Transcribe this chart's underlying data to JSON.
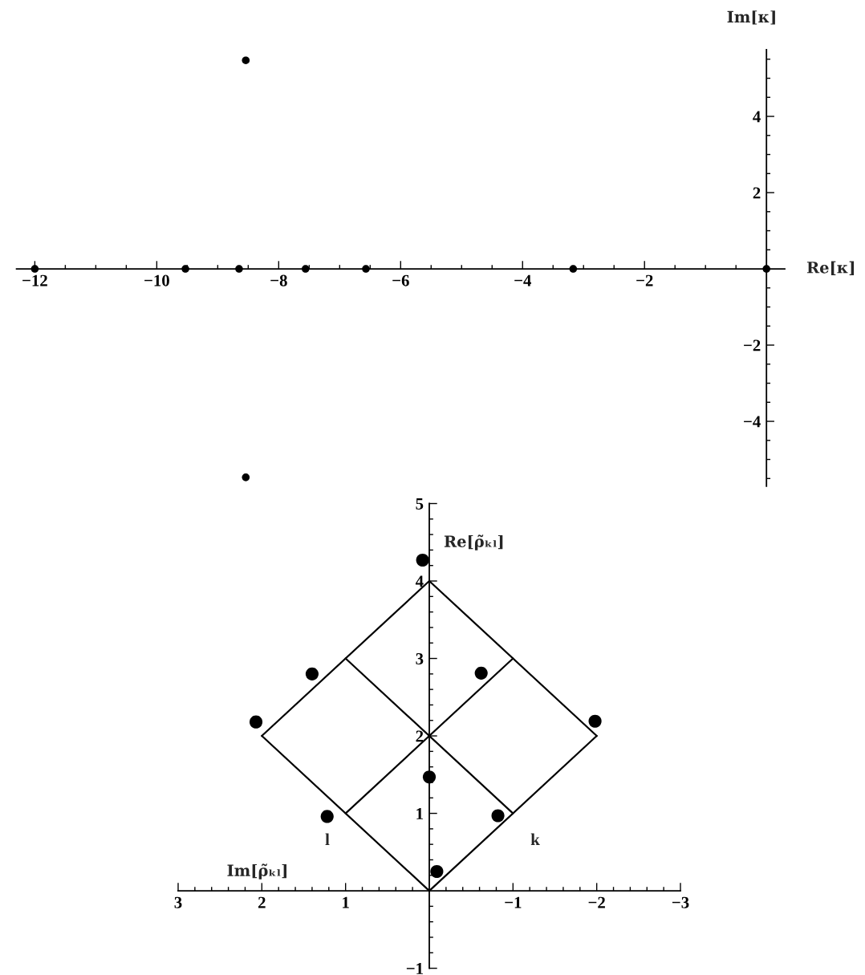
{
  "chart_data": [
    {
      "type": "scatter",
      "xlabel": "Re[κ]",
      "ylabel": "Im[κ]",
      "x": [
        -12.0,
        -9.53,
        -8.65,
        -7.56,
        -6.57,
        -3.17,
        0,
        -8.54,
        -8.54
      ],
      "values": [
        0,
        0,
        0,
        0,
        0,
        0,
        0,
        5.47,
        -5.47
      ],
      "color": "#000000",
      "marker": "circle",
      "xlim": [
        -12.3,
        0.3
      ],
      "ylim": [
        -5.7,
        5.75
      ],
      "xticks": [
        {
          "value": -12,
          "label": "−12"
        },
        {
          "value": -11.5,
          "label": null
        },
        {
          "value": -11,
          "label": null
        },
        {
          "value": -10.5,
          "label": null
        },
        {
          "value": -10,
          "label": "−10"
        },
        {
          "value": -9.5,
          "label": null
        },
        {
          "value": -9,
          "label": null
        },
        {
          "value": -8.5,
          "label": null
        },
        {
          "value": -8,
          "label": "−8"
        },
        {
          "value": -7.5,
          "label": null
        },
        {
          "value": -7,
          "label": null
        },
        {
          "value": -6.5,
          "label": null
        },
        {
          "value": -6,
          "label": "−6"
        },
        {
          "value": -5.5,
          "label": null
        },
        {
          "value": -5,
          "label": null
        },
        {
          "value": -4.5,
          "label": null
        },
        {
          "value": -4,
          "label": "−4"
        },
        {
          "value": -3.5,
          "label": null
        },
        {
          "value": -3,
          "label": null
        },
        {
          "value": -2.5,
          "label": null
        },
        {
          "value": -2,
          "label": "−2"
        },
        {
          "value": -1.5,
          "label": null
        },
        {
          "value": -1,
          "label": null
        },
        {
          "value": -0.5,
          "label": null
        }
      ],
      "yticks": [
        {
          "value": -5.5,
          "label": null
        },
        {
          "value": -5,
          "label": null
        },
        {
          "value": -4.5,
          "label": null
        },
        {
          "value": -4,
          "label": "−4"
        },
        {
          "value": -3.5,
          "label": null
        },
        {
          "value": -3,
          "label": null
        },
        {
          "value": -2.5,
          "label": null
        },
        {
          "value": -2,
          "label": "−2"
        },
        {
          "value": -1.5,
          "label": null
        },
        {
          "value": -1,
          "label": null
        },
        {
          "value": -0.5,
          "label": null
        },
        {
          "value": 0.5,
          "label": null
        },
        {
          "value": 1,
          "label": null
        },
        {
          "value": 1.5,
          "label": null
        },
        2,
        {
          "value": 2.5,
          "label": null
        },
        {
          "value": 3,
          "label": null
        },
        {
          "value": 3.5,
          "label": null
        },
        4,
        {
          "value": 4.5,
          "label": null
        },
        {
          "value": 5,
          "label": null
        },
        {
          "value": 5.5,
          "label": null
        }
      ]
    },
    {
      "type": "scatter",
      "xlabel": "Im[ρ̃ₖₗ]",
      "ylabel": "Re[ρ̃ₖₗ]",
      "xlim": [
        3,
        -3
      ],
      "ylim": [
        -1,
        5
      ],
      "series": [
        {
          "type": "line",
          "color": "#000000",
          "marker": "none",
          "line_style": "solid",
          "x": [
            2,
            0,
            -2
          ],
          "values": [
            2,
            0,
            2
          ]
        },
        {
          "type": "line",
          "color": "#000000",
          "marker": "none",
          "line_style": "solid",
          "x": [
            2,
            0,
            -2
          ],
          "values": [
            2,
            4,
            2
          ]
        },
        {
          "type": "line",
          "color": "#000000",
          "marker": "none",
          "line_style": "solid",
          "x": [
            1,
            -1
          ],
          "values": [
            1,
            3
          ]
        },
        {
          "type": "line",
          "color": "#000000",
          "marker": "none",
          "line_style": "solid",
          "x": [
            1,
            -1
          ],
          "values": [
            3,
            1
          ]
        },
        {
          "type": "scatter",
          "color": "#000000",
          "marker": "circle",
          "x": [
            0.08,
            1.4,
            -0.62,
            2.07,
            -1.98,
            0.0,
            1.22,
            -0.82,
            -0.09
          ],
          "values": [
            4.27,
            2.8,
            2.81,
            2.18,
            2.19,
            1.47,
            0.96,
            0.97,
            0.25
          ]
        }
      ],
      "annotations": [
        "l",
        "k"
      ],
      "xticks": [
        3,
        {
          "value": 2.8,
          "label": null
        },
        {
          "value": 2.6,
          "label": null
        },
        {
          "value": 2.4,
          "label": null
        },
        {
          "value": 2.2,
          "label": null
        },
        2,
        {
          "value": 1.8,
          "label": null
        },
        {
          "value": 1.6,
          "label": null
        },
        {
          "value": 1.4,
          "label": null
        },
        {
          "value": 1.2,
          "label": null
        },
        1,
        {
          "value": 0.8,
          "label": null
        },
        {
          "value": 0.6,
          "label": null
        },
        {
          "value": 0.4,
          "label": null
        },
        {
          "value": 0.2,
          "label": null
        },
        {
          "value": -0.2,
          "label": null
        },
        {
          "value": -0.4,
          "label": null
        },
        {
          "value": -0.6,
          "label": null
        },
        {
          "value": -0.8,
          "label": null
        },
        {
          "value": -1,
          "label": "−1"
        },
        {
          "value": -1.2,
          "label": null
        },
        {
          "value": -1.4,
          "label": null
        },
        {
          "value": -1.6,
          "label": null
        },
        {
          "value": -1.8,
          "label": null
        },
        {
          "value": -2,
          "label": "−2"
        },
        {
          "value": -2.2,
          "label": null
        },
        {
          "value": -2.4,
          "label": null
        },
        {
          "value": -2.6,
          "label": null
        },
        {
          "value": -2.8,
          "label": null
        },
        {
          "value": -3,
          "label": "−3"
        }
      ],
      "yticks": [
        {
          "value": -1,
          "label": "−1"
        },
        {
          "value": -0.8,
          "label": null
        },
        {
          "value": -0.6,
          "label": null
        },
        {
          "value": -0.4,
          "label": null
        },
        {
          "value": -0.2,
          "label": null
        },
        {
          "value": 0.2,
          "label": null
        },
        {
          "value": 0.4,
          "label": null
        },
        {
          "value": 0.6,
          "label": null
        },
        {
          "value": 0.8,
          "label": null
        },
        1,
        {
          "value": 1.2,
          "label": null
        },
        {
          "value": 1.4,
          "label": null
        },
        {
          "value": 1.6,
          "label": null
        },
        {
          "value": 1.8,
          "label": null
        },
        2,
        {
          "value": 2.2,
          "label": null
        },
        {
          "value": 2.4,
          "label": null
        },
        {
          "value": 2.6,
          "label": null
        },
        {
          "value": 2.8,
          "label": null
        },
        3,
        {
          "value": 3.2,
          "label": null
        },
        {
          "value": 3.4,
          "label": null
        },
        {
          "value": 3.6,
          "label": null
        },
        {
          "value": 3.8,
          "label": null
        },
        4,
        {
          "value": 4.2,
          "label": null
        },
        {
          "value": 4.4,
          "label": null
        },
        {
          "value": 4.6,
          "label": null
        },
        {
          "value": 4.8,
          "label": null
        },
        5
      ]
    }
  ]
}
